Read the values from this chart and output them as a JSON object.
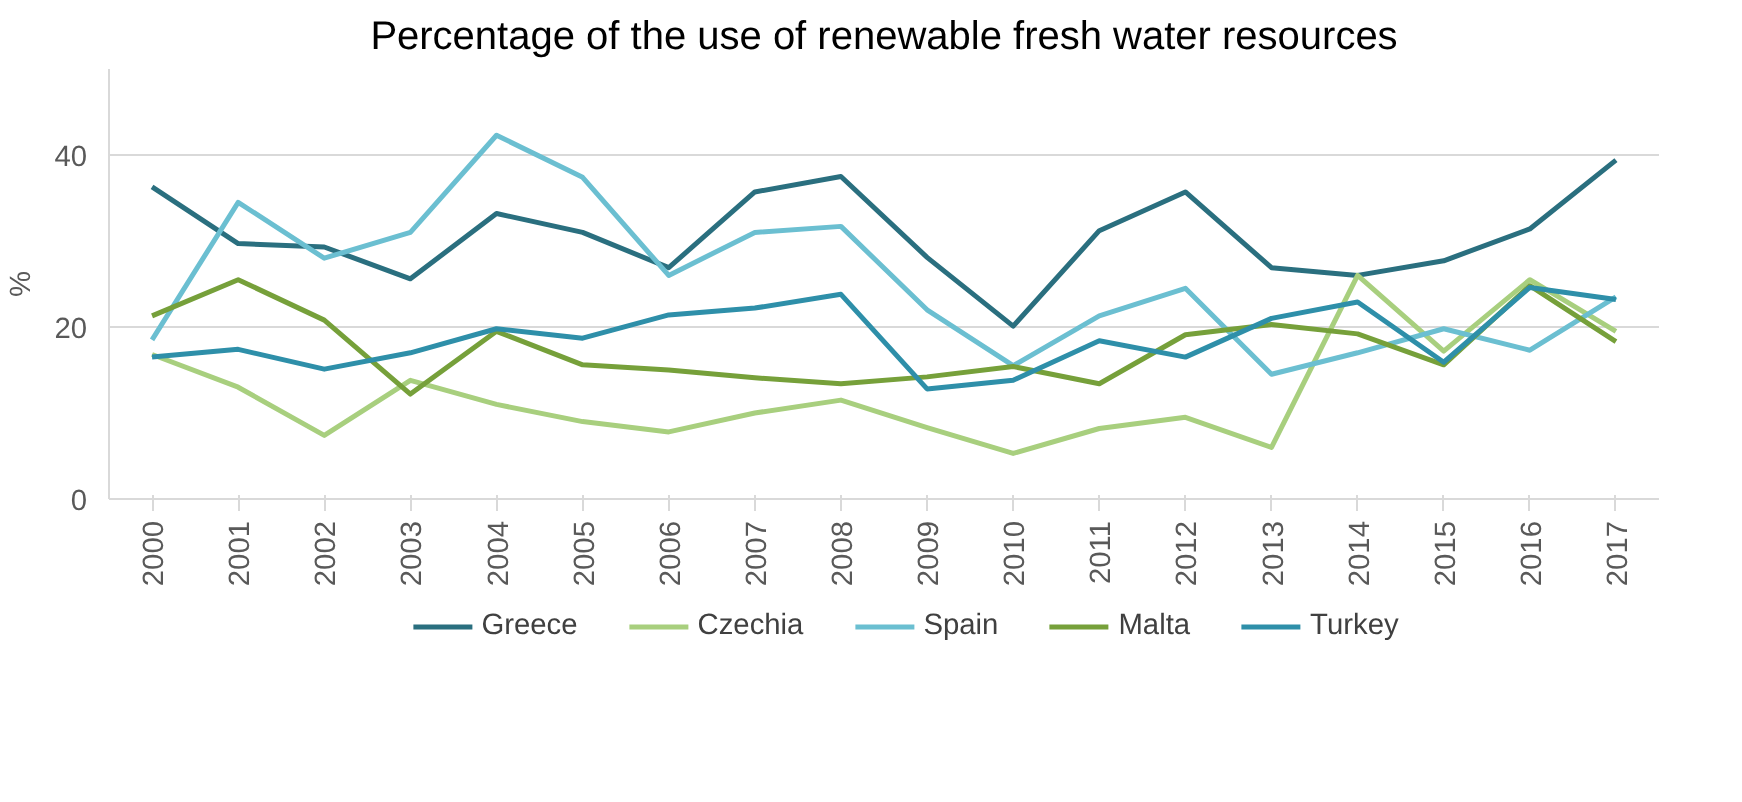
{
  "chart_data": {
    "type": "line",
    "title": "Percentage of the use of renewable fresh water resources",
    "ylabel": "%",
    "categories": [
      "2000",
      "2001",
      "2002",
      "2003",
      "2004",
      "2005",
      "2006",
      "2007",
      "2008",
      "2009",
      "2010",
      "2011",
      "2012",
      "2013",
      "2014",
      "2015",
      "2016",
      "2017"
    ],
    "series": [
      {
        "name": "Greece",
        "color": "#2a6f7f",
        "values": [
          36.3,
          29.7,
          29.3,
          25.6,
          33.2,
          31.0,
          26.9,
          35.7,
          37.5,
          28.1,
          20.1,
          31.2,
          35.7,
          26.9,
          26.0,
          27.7,
          31.4,
          39.4
        ]
      },
      {
        "name": "Czechia",
        "color": "#a8cf7e",
        "values": [
          16.8,
          13,
          7.4,
          13.8,
          11,
          9,
          7.8,
          10,
          11.5,
          8.3,
          5.3,
          8.2,
          9.5,
          6,
          26,
          17.2,
          25.5,
          19.5
        ]
      },
      {
        "name": "Spain",
        "color": "#6bbfd1",
        "values": [
          18.5,
          34.5,
          28,
          31,
          42.3,
          37.4,
          26,
          31,
          31.7,
          22,
          15.5,
          21.3,
          24.5,
          14.5,
          17,
          19.8,
          17.3,
          23.5
        ]
      },
      {
        "name": "Malta",
        "color": "#76a03a",
        "values": [
          21.3,
          25.5,
          20.8,
          12.2,
          19.5,
          15.6,
          15,
          14.1,
          13.4,
          14.2,
          15.4,
          13.4,
          19.1,
          20.3,
          19.2,
          15.6,
          24.8,
          18.3
        ]
      },
      {
        "name": "Turkey",
        "color": "#2e8fa9",
        "values": [
          16.5,
          17.4,
          15.1,
          17,
          19.8,
          18.7,
          21.4,
          22.2,
          23.8,
          12.8,
          13.8,
          18.4,
          16.5,
          21,
          22.9,
          15.9,
          24.6,
          23.2
        ]
      }
    ],
    "ylim": [
      0,
      50
    ],
    "yticks": [
      0,
      20,
      40
    ],
    "grid": "y",
    "legend": "bottom"
  }
}
